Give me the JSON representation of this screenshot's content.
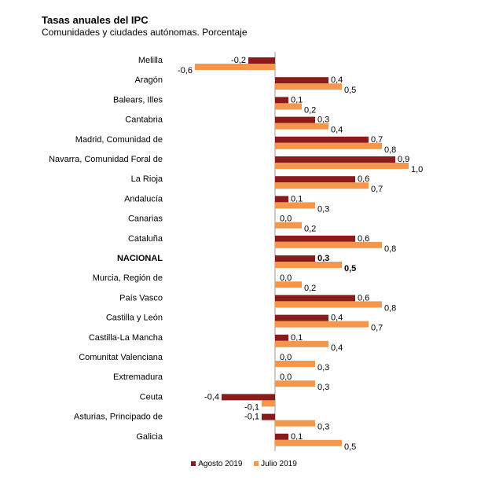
{
  "chart_data": {
    "type": "bar",
    "orientation": "horizontal",
    "title": "Tasas anuales del IPC",
    "subtitle": "Comunidades y ciudades autónomas. Porcentaje",
    "categories": [
      "Melilla",
      "Aragón",
      "Balears, Illes",
      "Cantabria",
      "Madrid, Comunidad de",
      "Navarra, Comunidad Foral de",
      "La Rioja",
      "Andalucía",
      "Canarias",
      "Cataluña",
      "NACIONAL",
      "Murcia, Región de",
      "País Vasco",
      "Castilla y León",
      "Castilla-La Mancha",
      "Comunitat Valenciana",
      "Extremadura",
      "Ceuta",
      "Asturias, Principado de",
      "Galicia"
    ],
    "bold_category": "NACIONAL",
    "xlim": [
      -0.6,
      1.0
    ],
    "series": [
      {
        "name": "Agosto 2019",
        "color": "#8b1a1a",
        "values": [
          -0.2,
          0.4,
          0.1,
          0.3,
          0.7,
          0.9,
          0.6,
          0.1,
          0.0,
          0.6,
          0.3,
          0.0,
          0.6,
          0.4,
          0.1,
          0.0,
          0.0,
          -0.4,
          -0.1,
          0.1
        ],
        "labels": [
          "-0,2",
          "0,4",
          "0,1",
          "0,3",
          "0,7",
          "0,9",
          "0,6",
          "0,1",
          "0,0",
          "0,6",
          "0,3",
          "0,0",
          "0,6",
          "0,4",
          "0,1",
          "0,0",
          "0,0",
          "-0,4",
          "-0,1",
          "0,1"
        ]
      },
      {
        "name": "Julio 2019",
        "color": "#f4964b",
        "values": [
          -0.6,
          0.5,
          0.2,
          0.4,
          0.8,
          1.0,
          0.7,
          0.3,
          0.2,
          0.8,
          0.5,
          0.2,
          0.8,
          0.7,
          0.4,
          0.3,
          0.3,
          -0.1,
          0.3,
          0.5
        ],
        "labels": [
          "-0,6",
          "0,5",
          "0,2",
          "0,4",
          "0,8",
          "1,0",
          "0,7",
          "0,3",
          "0,2",
          "0,8",
          "0,5",
          "0,2",
          "0,8",
          "0,7",
          "0,4",
          "0,3",
          "0,3",
          "-0,1",
          "0,3",
          "0,5"
        ]
      }
    ],
    "legend": [
      "Agosto 2019",
      "Julio 2019"
    ],
    "legend_position": "bottom"
  }
}
